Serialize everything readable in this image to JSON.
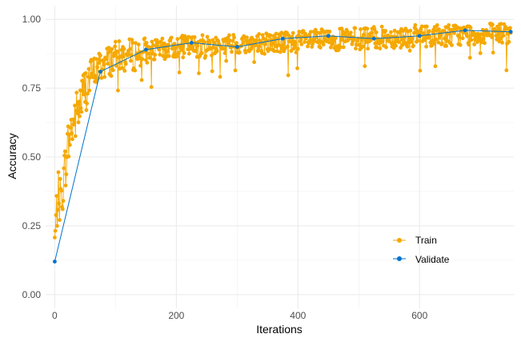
{
  "chart_data": {
    "type": "line",
    "xlabel": "Iterations",
    "ylabel": "Accuracy",
    "xlim": [
      -15,
      755
    ],
    "ylim": [
      -0.05,
      1.05
    ],
    "x_ticks": [
      0,
      200,
      400,
      600
    ],
    "x_tick_labels": [
      "0",
      "200",
      "400",
      "600"
    ],
    "y_ticks": [
      0.0,
      0.25,
      0.5,
      0.75,
      1.0
    ],
    "y_tick_labels": [
      "0.00",
      "0.25",
      "0.50",
      "0.75",
      "1.00"
    ],
    "grid": true,
    "legend_position": "bottom-right",
    "series": [
      {
        "name": "Train",
        "color": "#F5A800",
        "marker": "circle",
        "x_start": 0,
        "x_end": 750,
        "count": 751,
        "description_profile": [
          [
            0,
            0.19
          ],
          [
            5,
            0.36
          ],
          [
            10,
            0.34
          ],
          [
            15,
            0.42
          ],
          [
            20,
            0.52
          ],
          [
            25,
            0.58
          ],
          [
            30,
            0.62
          ],
          [
            40,
            0.68
          ],
          [
            50,
            0.75
          ],
          [
            60,
            0.8
          ],
          [
            80,
            0.84
          ],
          [
            100,
            0.86
          ],
          [
            150,
            0.88
          ],
          [
            200,
            0.9
          ],
          [
            300,
            0.91
          ],
          [
            400,
            0.92
          ],
          [
            500,
            0.93
          ],
          [
            600,
            0.94
          ],
          [
            750,
            0.95
          ]
        ]
      },
      {
        "name": "Validate",
        "color": "#0072CE",
        "marker": "circle",
        "x": [
          0,
          75,
          150,
          225,
          300,
          375,
          450,
          525,
          600,
          675,
          750
        ],
        "values": [
          0.12,
          0.81,
          0.89,
          0.915,
          0.9,
          0.93,
          0.94,
          0.93,
          0.94,
          0.96,
          0.955
        ]
      }
    ]
  }
}
